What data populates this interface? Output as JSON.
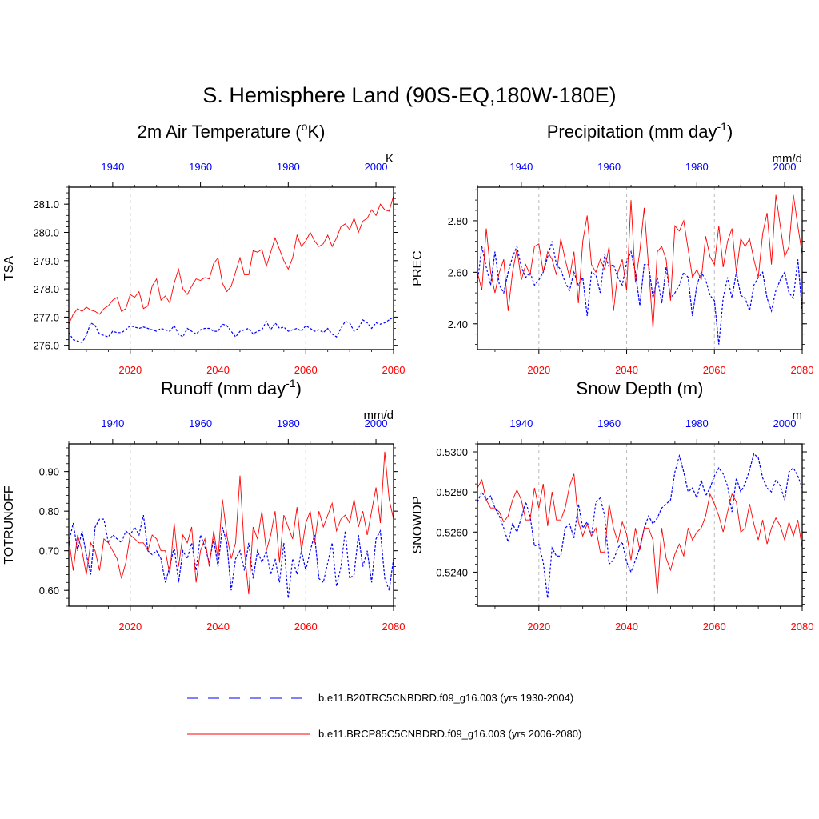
{
  "title": "S. Hemisphere Land (90S-EQ,180W-180E)",
  "colors": {
    "series_a": "#0000ff",
    "series_b": "#ff0000",
    "frame": "#000000",
    "grid": "#bbbbbb"
  },
  "legend": {
    "items": [
      {
        "label": "b.e11.B20TRC5CNBDRD.f09_g16.003 (yrs 1930-2004)",
        "style": "dashed",
        "color": "#0000ff"
      },
      {
        "label": "b.e11.BRCP85C5CNBDRD.f09_g16.003 (yrs 2006-2080)",
        "style": "solid",
        "color": "#ff0000"
      }
    ]
  },
  "chart_data": [
    {
      "type": "line",
      "title": "2m Air Temperature (",
      "title_sup": "o",
      "title_tail": "K)",
      "ylabel": "TSA",
      "units": "K",
      "ylim": [
        275.85,
        281.6
      ],
      "yticks": [
        276.0,
        277.0,
        278.0,
        279.0,
        280.0,
        281.0
      ],
      "ytick_labels": [
        "276.0",
        "277.0",
        "278.0",
        "279.0",
        "280.0",
        "281.0"
      ],
      "top_axis": {
        "range": [
          1930,
          2004
        ],
        "ticks": [
          1940,
          1960,
          1980,
          2000
        ]
      },
      "bottom_axis": {
        "range": [
          2006,
          2080
        ],
        "ticks": [
          2020,
          2040,
          2060,
          2080
        ]
      },
      "series": [
        {
          "name": "b.e11.B20TRC5CNBDRD.f09_g16.003 (yrs 1930-2004)",
          "style": "dashed",
          "color": "#0000ff",
          "values": [
            276.45,
            276.2,
            276.15,
            276.1,
            276.35,
            276.8,
            276.7,
            276.4,
            276.35,
            276.3,
            276.5,
            276.45,
            276.45,
            276.55,
            276.7,
            276.65,
            276.6,
            276.65,
            276.6,
            276.55,
            276.5,
            276.6,
            276.55,
            276.5,
            276.7,
            276.4,
            276.3,
            276.6,
            276.5,
            276.4,
            276.55,
            276.6,
            276.6,
            276.5,
            276.5,
            276.75,
            276.7,
            276.5,
            276.3,
            276.5,
            276.55,
            276.6,
            276.4,
            276.5,
            276.55,
            276.85,
            276.55,
            276.8,
            276.6,
            276.65,
            276.5,
            276.55,
            276.6,
            276.5,
            276.7,
            276.6,
            276.5,
            276.55,
            276.45,
            276.6,
            276.4,
            276.3,
            276.6,
            276.85,
            276.8,
            276.5,
            276.6,
            276.9,
            276.8,
            276.6,
            276.8,
            276.75,
            276.8,
            276.9,
            277.0
          ]
        },
        {
          "name": "b.e11.BRCP85C5CNBDRD.f09_g16.003 (yrs 2006-2080)",
          "style": "solid",
          "color": "#ff0000",
          "values": [
            276.75,
            277.1,
            277.3,
            277.2,
            277.35,
            277.25,
            277.2,
            277.1,
            277.3,
            277.4,
            277.6,
            277.7,
            277.2,
            277.3,
            277.8,
            277.7,
            277.9,
            277.3,
            277.4,
            278.1,
            278.35,
            277.6,
            277.75,
            277.5,
            278.2,
            278.7,
            278.0,
            277.8,
            278.1,
            278.35,
            278.3,
            278.4,
            278.35,
            278.9,
            279.1,
            278.2,
            277.9,
            278.1,
            278.6,
            279.1,
            278.5,
            278.5,
            279.35,
            279.3,
            279.4,
            278.8,
            279.3,
            279.8,
            279.4,
            279.0,
            278.7,
            279.1,
            279.9,
            279.5,
            279.7,
            280.0,
            279.7,
            279.5,
            279.6,
            279.9,
            279.5,
            279.8,
            280.2,
            280.3,
            280.1,
            280.5,
            280.0,
            280.4,
            280.5,
            280.8,
            280.6,
            281.0,
            280.8,
            280.75,
            281.3
          ]
        }
      ]
    },
    {
      "type": "line",
      "title": "Precipitation (mm day",
      "title_sup": "-1",
      "title_tail": ")",
      "ylabel": "PREC",
      "units": "mm/d",
      "ylim": [
        2.3,
        2.93
      ],
      "yticks": [
        2.4,
        2.6,
        2.8
      ],
      "ytick_labels": [
        "2.40",
        "2.60",
        "2.80"
      ],
      "top_axis": {
        "range": [
          1930,
          2004
        ],
        "ticks": [
          1940,
          1960,
          1980,
          2000
        ]
      },
      "bottom_axis": {
        "range": [
          2006,
          2080
        ],
        "ticks": [
          2020,
          2040,
          2060,
          2080
        ]
      },
      "series": [
        {
          "name": "b.e11.B20TRC5CNBDRD.f09_g16.003 (yrs 1930-2004)",
          "style": "dashed",
          "color": "#0000ff",
          "values": [
            2.56,
            2.7,
            2.62,
            2.55,
            2.68,
            2.55,
            2.52,
            2.6,
            2.66,
            2.7,
            2.62,
            2.58,
            2.6,
            2.55,
            2.57,
            2.6,
            2.66,
            2.72,
            2.63,
            2.61,
            2.56,
            2.53,
            2.6,
            2.55,
            2.58,
            2.43,
            2.6,
            2.59,
            2.52,
            2.67,
            2.62,
            2.63,
            2.58,
            2.55,
            2.64,
            2.68,
            2.6,
            2.47,
            2.63,
            2.63,
            2.5,
            2.58,
            2.48,
            2.62,
            2.5,
            2.52,
            2.55,
            2.6,
            2.58,
            2.43,
            2.55,
            2.6,
            2.57,
            2.51,
            2.49,
            2.32,
            2.5,
            2.58,
            2.5,
            2.6,
            2.51,
            2.5,
            2.45,
            2.55,
            2.58,
            2.6,
            2.5,
            2.45,
            2.53,
            2.57,
            2.6,
            2.52,
            2.5,
            2.65,
            2.45
          ]
        },
        {
          "name": "b.e11.BRCP85C5CNBDRD.f09_g16.003 (yrs 2006-2080)",
          "style": "solid",
          "color": "#ff0000",
          "values": [
            2.6,
            2.53,
            2.77,
            2.6,
            2.52,
            2.6,
            2.65,
            2.45,
            2.6,
            2.69,
            2.57,
            2.63,
            2.59,
            2.7,
            2.71,
            2.6,
            2.68,
            2.65,
            2.59,
            2.73,
            2.65,
            2.58,
            2.68,
            2.48,
            2.72,
            2.82,
            2.63,
            2.6,
            2.65,
            2.61,
            2.7,
            2.45,
            2.6,
            2.65,
            2.53,
            2.88,
            2.56,
            2.68,
            2.85,
            2.62,
            2.38,
            2.68,
            2.7,
            2.65,
            2.49,
            2.78,
            2.76,
            2.8,
            2.69,
            2.58,
            2.61,
            2.57,
            2.74,
            2.66,
            2.63,
            2.78,
            2.62,
            2.72,
            2.77,
            2.6,
            2.73,
            2.7,
            2.73,
            2.65,
            2.58,
            2.75,
            2.83,
            2.63,
            2.9,
            2.78,
            2.66,
            2.7,
            2.9,
            2.78,
            2.67
          ]
        }
      ]
    },
    {
      "type": "line",
      "title": "Runoff (mm day",
      "title_sup": "-1",
      "title_tail": ")",
      "ylabel": "TOTRUNOFF",
      "units": "mm/d",
      "ylim": [
        0.56,
        0.97
      ],
      "yticks": [
        0.6,
        0.7,
        0.8,
        0.9
      ],
      "ytick_labels": [
        "0.60",
        "0.70",
        "0.80",
        "0.90"
      ],
      "top_axis": {
        "range": [
          1930,
          2004
        ],
        "ticks": [
          1940,
          1960,
          1980,
          2000
        ]
      },
      "bottom_axis": {
        "range": [
          2006,
          2080
        ],
        "ticks": [
          2020,
          2040,
          2060,
          2080
        ]
      },
      "series": [
        {
          "name": "b.e11.B20TRC5CNBDRD.f09_g16.003 (yrs 1930-2004)",
          "style": "dashed",
          "color": "#0000ff",
          "values": [
            0.72,
            0.77,
            0.7,
            0.75,
            0.69,
            0.64,
            0.76,
            0.78,
            0.78,
            0.72,
            0.74,
            0.73,
            0.72,
            0.75,
            0.74,
            0.76,
            0.74,
            0.79,
            0.7,
            0.69,
            0.7,
            0.68,
            0.62,
            0.66,
            0.71,
            0.62,
            0.7,
            0.68,
            0.72,
            0.65,
            0.74,
            0.71,
            0.67,
            0.73,
            0.66,
            0.76,
            0.72,
            0.6,
            0.68,
            0.7,
            0.65,
            0.72,
            0.63,
            0.7,
            0.67,
            0.7,
            0.64,
            0.68,
            0.62,
            0.72,
            0.58,
            0.68,
            0.64,
            0.7,
            0.65,
            0.7,
            0.74,
            0.63,
            0.62,
            0.67,
            0.72,
            0.61,
            0.66,
            0.75,
            0.63,
            0.64,
            0.74,
            0.66,
            0.7,
            0.62,
            0.73,
            0.75,
            0.63,
            0.6,
            0.68
          ]
        },
        {
          "name": "b.e11.BRCP85C5CNBDRD.f09_g16.003 (yrs 2006-2080)",
          "style": "solid",
          "color": "#ff0000",
          "values": [
            0.73,
            0.65,
            0.74,
            0.7,
            0.64,
            0.72,
            0.7,
            0.65,
            0.73,
            0.72,
            0.7,
            0.68,
            0.63,
            0.67,
            0.74,
            0.73,
            0.72,
            0.72,
            0.7,
            0.74,
            0.73,
            0.7,
            0.7,
            0.64,
            0.77,
            0.66,
            0.74,
            0.72,
            0.76,
            0.62,
            0.7,
            0.73,
            0.66,
            0.75,
            0.68,
            0.83,
            0.74,
            0.68,
            0.72,
            0.89,
            0.7,
            0.59,
            0.76,
            0.73,
            0.8,
            0.7,
            0.74,
            0.8,
            0.67,
            0.79,
            0.76,
            0.73,
            0.81,
            0.7,
            0.77,
            0.8,
            0.72,
            0.8,
            0.76,
            0.79,
            0.82,
            0.75,
            0.78,
            0.79,
            0.77,
            0.83,
            0.76,
            0.8,
            0.74,
            0.8,
            0.86,
            0.77,
            0.95,
            0.83,
            0.78
          ]
        }
      ]
    },
    {
      "type": "line",
      "title": "Snow Depth (m)",
      "title_sup": "",
      "title_tail": "",
      "ylabel": "SNOWDP",
      "units": "m",
      "ylim": [
        0.5223,
        0.5304
      ],
      "yticks": [
        0.524,
        0.526,
        0.528,
        0.53
      ],
      "ytick_labels": [
        "0.5240",
        "0.5260",
        "0.5280",
        "0.5300"
      ],
      "top_axis": {
        "range": [
          1930,
          2004
        ],
        "ticks": [
          1940,
          1960,
          1980,
          2000
        ]
      },
      "bottom_axis": {
        "range": [
          2006,
          2080
        ],
        "ticks": [
          2020,
          2040,
          2060,
          2080
        ]
      },
      "series": [
        {
          "name": "b.e11.B20TRC5CNBDRD.f09_g16.003 (yrs 1930-2004)",
          "style": "dashed",
          "color": "#0000ff",
          "values": [
            0.5275,
            0.528,
            0.5276,
            0.5278,
            0.5272,
            0.5268,
            0.5262,
            0.5255,
            0.5264,
            0.526,
            0.5267,
            0.5275,
            0.5268,
            0.5253,
            0.5254,
            0.5245,
            0.5227,
            0.5252,
            0.5248,
            0.5248,
            0.5262,
            0.5264,
            0.5257,
            0.5274,
            0.5262,
            0.5265,
            0.5258,
            0.5275,
            0.5277,
            0.5268,
            0.5244,
            0.5246,
            0.5252,
            0.5255,
            0.5245,
            0.524,
            0.5246,
            0.5252,
            0.5262,
            0.5268,
            0.5264,
            0.5267,
            0.5272,
            0.5274,
            0.5276,
            0.529,
            0.5298,
            0.529,
            0.528,
            0.5282,
            0.5277,
            0.5286,
            0.5278,
            0.5282,
            0.5288,
            0.5292,
            0.5289,
            0.5283,
            0.527,
            0.5287,
            0.528,
            0.5284,
            0.5291,
            0.5299,
            0.5297,
            0.5287,
            0.5282,
            0.528,
            0.5286,
            0.5283,
            0.5276,
            0.529,
            0.5292,
            0.5288,
            0.5282
          ]
        },
        {
          "name": "b.e11.BRCP85C5CNBDRD.f09_g16.003 (yrs 2006-2080)",
          "style": "solid",
          "color": "#ff0000",
          "values": [
            0.5282,
            0.5286,
            0.5276,
            0.5272,
            0.5272,
            0.527,
            0.5265,
            0.5268,
            0.5276,
            0.5281,
            0.5276,
            0.5266,
            0.5266,
            0.5282,
            0.5272,
            0.5284,
            0.5263,
            0.528,
            0.5266,
            0.5266,
            0.5272,
            0.5283,
            0.5289,
            0.5265,
            0.5258,
            0.5264,
            0.5258,
            0.5262,
            0.525,
            0.525,
            0.5274,
            0.5262,
            0.5255,
            0.5265,
            0.5259,
            0.5246,
            0.5262,
            0.5251,
            0.5262,
            0.5262,
            0.5256,
            0.5229,
            0.5262,
            0.5247,
            0.5241,
            0.5249,
            0.5254,
            0.5248,
            0.5262,
            0.5256,
            0.526,
            0.5262,
            0.5268,
            0.5279,
            0.5274,
            0.5268,
            0.526,
            0.527,
            0.5279,
            0.5275,
            0.526,
            0.5262,
            0.5274,
            0.5264,
            0.5256,
            0.5266,
            0.5254,
            0.5262,
            0.5267,
            0.5263,
            0.5256,
            0.5265,
            0.5258,
            0.5266,
            0.5252
          ]
        }
      ]
    }
  ]
}
